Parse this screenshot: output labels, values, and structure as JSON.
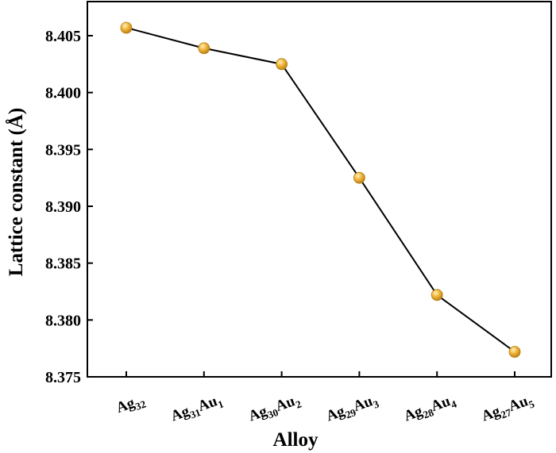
{
  "chart_data": {
    "type": "line",
    "xlabel": "Alloy",
    "ylabel": "Lattice constant (Å)",
    "categories": [
      [
        {
          "t": "Ag"
        },
        {
          "t": "32",
          "sub": true
        }
      ],
      [
        {
          "t": "Ag"
        },
        {
          "t": "31",
          "sub": true
        },
        {
          "t": "Au"
        },
        {
          "t": "1",
          "sub": true
        }
      ],
      [
        {
          "t": "Ag"
        },
        {
          "t": "30",
          "sub": true
        },
        {
          "t": "Au"
        },
        {
          "t": "2",
          "sub": true
        }
      ],
      [
        {
          "t": "Ag"
        },
        {
          "t": "29",
          "sub": true
        },
        {
          "t": "Au"
        },
        {
          "t": "3",
          "sub": true
        }
      ],
      [
        {
          "t": "Ag"
        },
        {
          "t": "28",
          "sub": true
        },
        {
          "t": "Au"
        },
        {
          "t": "4",
          "sub": true
        }
      ],
      [
        {
          "t": "Ag"
        },
        {
          "t": "27",
          "sub": true
        },
        {
          "t": "Au"
        },
        {
          "t": "5",
          "sub": true
        }
      ]
    ],
    "series": [
      {
        "values": [
          8.4057,
          8.4039,
          8.4025,
          8.3925,
          8.3822,
          8.3772
        ]
      }
    ],
    "ylim": [
      8.375,
      8.408
    ],
    "yticks": [
      "8.375",
      "8.380",
      "8.385",
      "8.390",
      "8.395",
      "8.400",
      "8.405"
    ],
    "grid": false,
    "legend": "none",
    "colors": {
      "marker": "#f2b53a",
      "marker_highlight": "#fff2c0",
      "marker_edge": "#b07a12",
      "line": "#000000"
    }
  }
}
